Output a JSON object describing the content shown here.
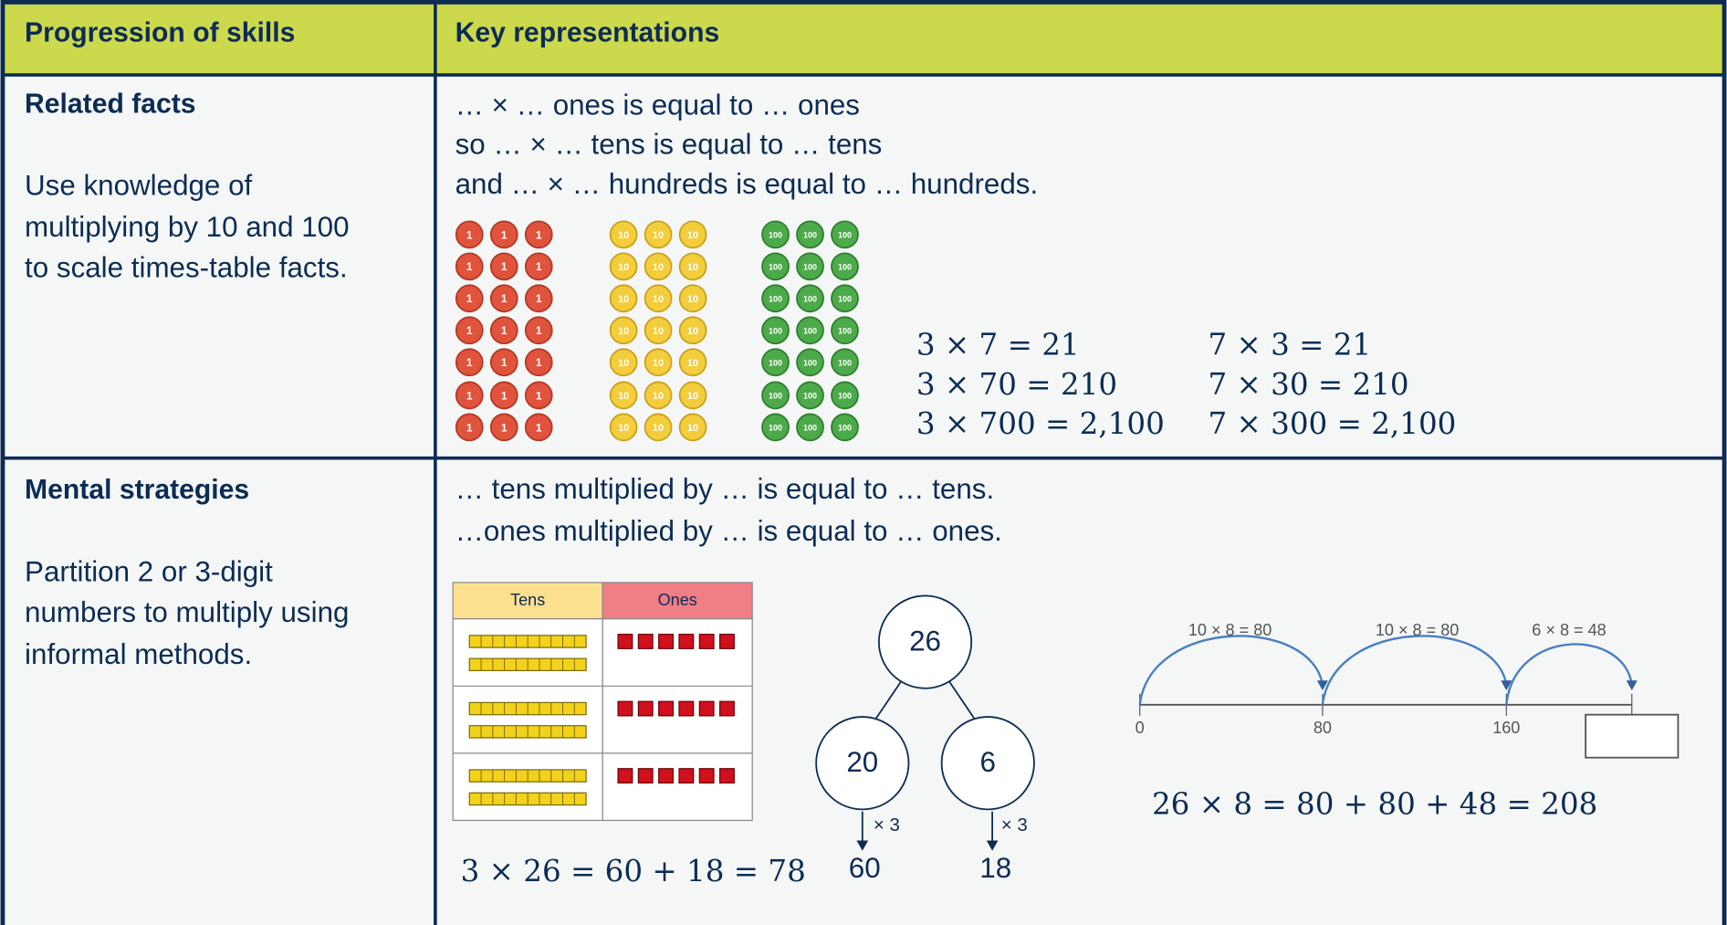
{
  "table": {
    "headers": [
      "Progression of skills",
      "Key representations"
    ],
    "rows": [
      {
        "skill": "Related facts",
        "description": [
          "Use knowledge of",
          "multiplying by 10 and 100",
          "to scale times-table facts."
        ],
        "sentences": [
          "… × … ones is equal to … ones",
          "so … × … tens is equal to … tens",
          "and … × … hundreds is equal to … hundreds."
        ],
        "counters": [
          "1",
          "10",
          "100"
        ],
        "equations": [
          [
            "3 × 7 = 21",
            "3 × 70 = 210",
            "3 × 700 = 2,100"
          ],
          [
            "7 × 3 = 21",
            "7 × 30 = 210",
            "7 × 300 = 2,100"
          ]
        ]
      },
      {
        "skill": "Mental strategies",
        "description": [
          "Partition 2 or 3-digit",
          "numbers to multiply using",
          "informal methods."
        ],
        "sentences": [
          "… tens multiplied by … is equal to … tens.",
          "…ones multiplied by … is equal to … ones."
        ],
        "place_value": {
          "headers": [
            "Tens",
            "Ones"
          ],
          "equation": "3 × 26 = 60 + 18 = 78"
        },
        "part_whole": {
          "whole": "26",
          "parts": [
            "20",
            "6"
          ],
          "operation": "× 3",
          "results": [
            "60",
            "18"
          ]
        },
        "number_line": {
          "jumps": [
            "10 × 8 = 80",
            "10 × 8 = 80",
            "6 × 8 = 48"
          ],
          "marks": [
            "0",
            "80",
            "160"
          ],
          "equation": "26 × 8 = 80 + 80 + 48  = 208"
        }
      }
    ]
  }
}
